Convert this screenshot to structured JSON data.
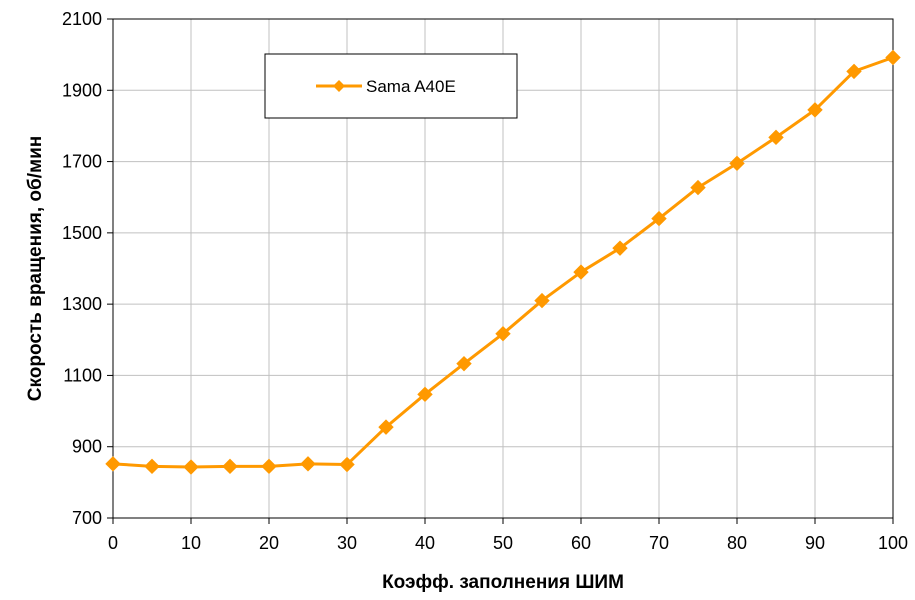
{
  "chart_data": {
    "type": "line",
    "xlabel": "Коэфф. заполнения ШИМ",
    "ylabel": "Скорость вращения, об/мин",
    "xlim": [
      0,
      100
    ],
    "ylim": [
      700,
      2100
    ],
    "xticks": [
      0,
      10,
      20,
      30,
      40,
      50,
      60,
      70,
      80,
      90,
      100
    ],
    "yticks": [
      700,
      900,
      1100,
      1300,
      1500,
      1700,
      1900,
      2100
    ],
    "grid": true,
    "legend_position": "top-left",
    "series": [
      {
        "name": "Sama A40E",
        "color": "#FF9900",
        "marker": "diamond",
        "x": [
          0,
          5,
          10,
          15,
          20,
          25,
          30,
          35,
          40,
          45,
          50,
          55,
          60,
          65,
          70,
          75,
          80,
          85,
          90,
          95,
          100
        ],
        "y": [
          852,
          845,
          843,
          845,
          845,
          852,
          850,
          955,
          1047,
          1133,
          1217,
          1310,
          1390,
          1457,
          1540,
          1627,
          1695,
          1768,
          1845,
          1953,
          1992
        ]
      }
    ]
  }
}
